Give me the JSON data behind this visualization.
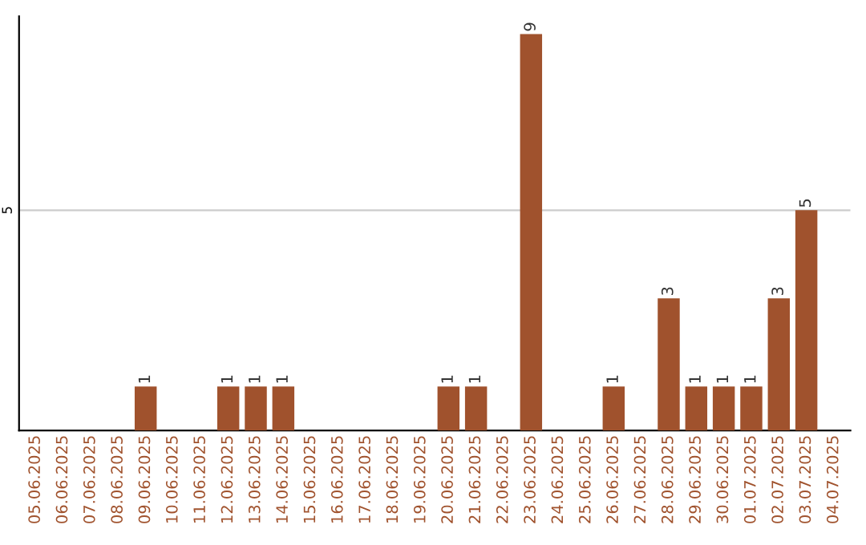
{
  "chart_data": {
    "type": "bar",
    "categories": [
      "05.06.2025",
      "06.06.2025",
      "07.06.2025",
      "08.06.2025",
      "09.06.2025",
      "10.06.2025",
      "11.06.2025",
      "12.06.2025",
      "13.06.2025",
      "14.06.2025",
      "15.06.2025",
      "16.06.2025",
      "17.06.2025",
      "18.06.2025",
      "19.06.2025",
      "20.06.2025",
      "21.06.2025",
      "22.06.2025",
      "23.06.2025",
      "24.06.2025",
      "25.06.2025",
      "26.06.2025",
      "27.06.2025",
      "28.06.2025",
      "29.06.2025",
      "30.06.2025",
      "01.07.2025",
      "02.07.2025",
      "03.07.2025",
      "04.07.2025"
    ],
    "values": [
      0,
      0,
      0,
      0,
      1,
      0,
      0,
      1,
      1,
      1,
      0,
      0,
      0,
      0,
      0,
      1,
      1,
      0,
      9,
      0,
      0,
      1,
      0,
      3,
      1,
      1,
      1,
      3,
      5,
      0
    ],
    "value_labels": [
      null,
      null,
      null,
      null,
      "1",
      null,
      null,
      "1",
      "1",
      "1",
      null,
      null,
      null,
      null,
      null,
      "1",
      "1",
      null,
      "9",
      null,
      null,
      "1",
      null,
      "3",
      "1",
      "1",
      "1",
      "3",
      "5",
      null
    ],
    "color": "#a0522d",
    "ylim": [
      0,
      9.4
    ],
    "yticks": [
      5
    ],
    "grid": "y"
  }
}
